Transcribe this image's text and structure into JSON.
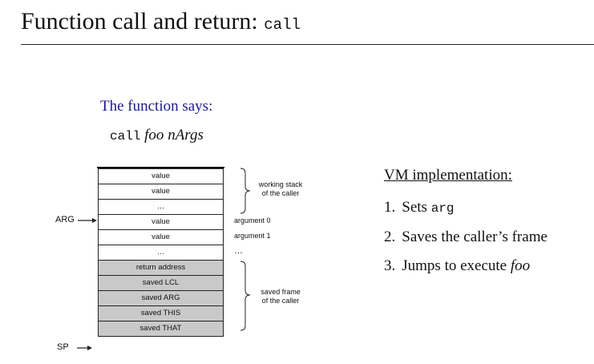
{
  "title": {
    "text": "Function call and return: ",
    "code": "call"
  },
  "intro": {
    "says": "The function says:",
    "call_code": "call",
    "call_name": "foo",
    "call_args": "nArgs"
  },
  "stack": {
    "cells": [
      {
        "text": "value",
        "shaded": false
      },
      {
        "text": "value",
        "shaded": false
      },
      {
        "text": "…",
        "shaded": false
      },
      {
        "text": "value",
        "shaded": false
      },
      {
        "text": "value",
        "shaded": false
      },
      {
        "text": "…",
        "shaded": false
      },
      {
        "text": "return address",
        "shaded": true
      },
      {
        "text": "saved LCL",
        "shaded": true
      },
      {
        "text": "saved ARG",
        "shaded": true
      },
      {
        "text": "saved THIS",
        "shaded": true
      },
      {
        "text": "saved THAT",
        "shaded": true
      }
    ],
    "annotations": {
      "working_stack": [
        "working stack",
        "of the caller"
      ],
      "argument0": "argument 0",
      "argument1": "argument 1",
      "args_ellipsis": "…",
      "saved_frame": [
        "saved frame",
        "of the caller"
      ]
    },
    "pointers": {
      "arg": "ARG",
      "sp": "SP"
    }
  },
  "vm": {
    "heading": "VM implementation:",
    "steps": [
      {
        "num": "1.",
        "text": "Sets ",
        "code": "arg",
        "rest": ""
      },
      {
        "num": "2.",
        "text": "Saves the caller’s frame",
        "code": "",
        "rest": ""
      },
      {
        "num": "3.",
        "text": "Jumps to execute ",
        "code": "",
        "rest": "foo"
      }
    ]
  }
}
